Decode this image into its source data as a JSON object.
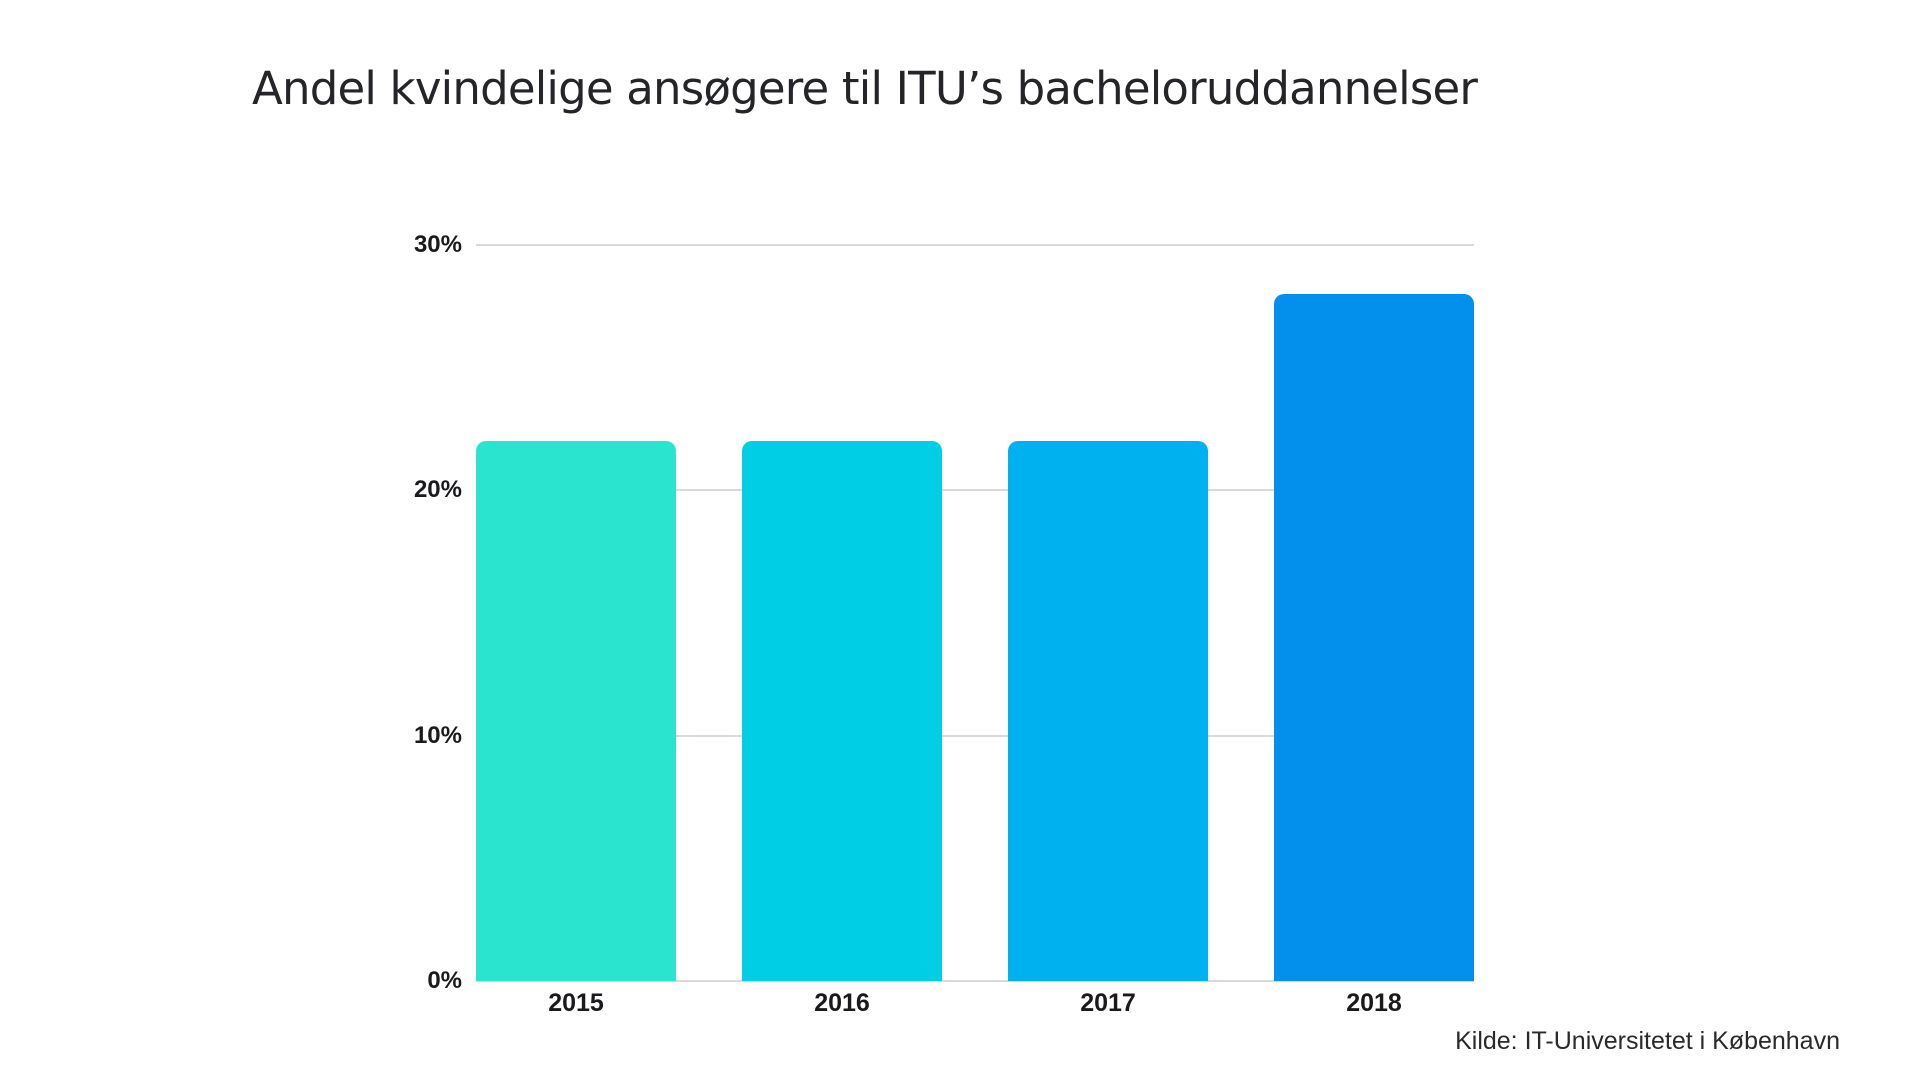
{
  "page": {
    "background_color": "#ffffff"
  },
  "chart_data": {
    "type": "bar",
    "title": "Andel kvindelige ansøgere til ITU’s bacheloruddannelser",
    "categories": [
      "2015",
      "2016",
      "2017",
      "2018"
    ],
    "values": [
      22,
      22,
      22,
      28
    ],
    "unit": "%",
    "bar_colors": [
      "#2BE4CF",
      "#00CEE4",
      "#00B1F0",
      "#0390EC"
    ],
    "ylim": [
      0,
      30
    ],
    "yticks": [
      0,
      10,
      20,
      30
    ],
    "ytick_labels": [
      "0%",
      "10%",
      "20%",
      "30%"
    ],
    "xlabel": "",
    "ylabel": "",
    "grid": "horizontal",
    "grid_color": "#d9d9d9",
    "legend": "none",
    "source": "Kilde: IT-Universitetet i København"
  }
}
